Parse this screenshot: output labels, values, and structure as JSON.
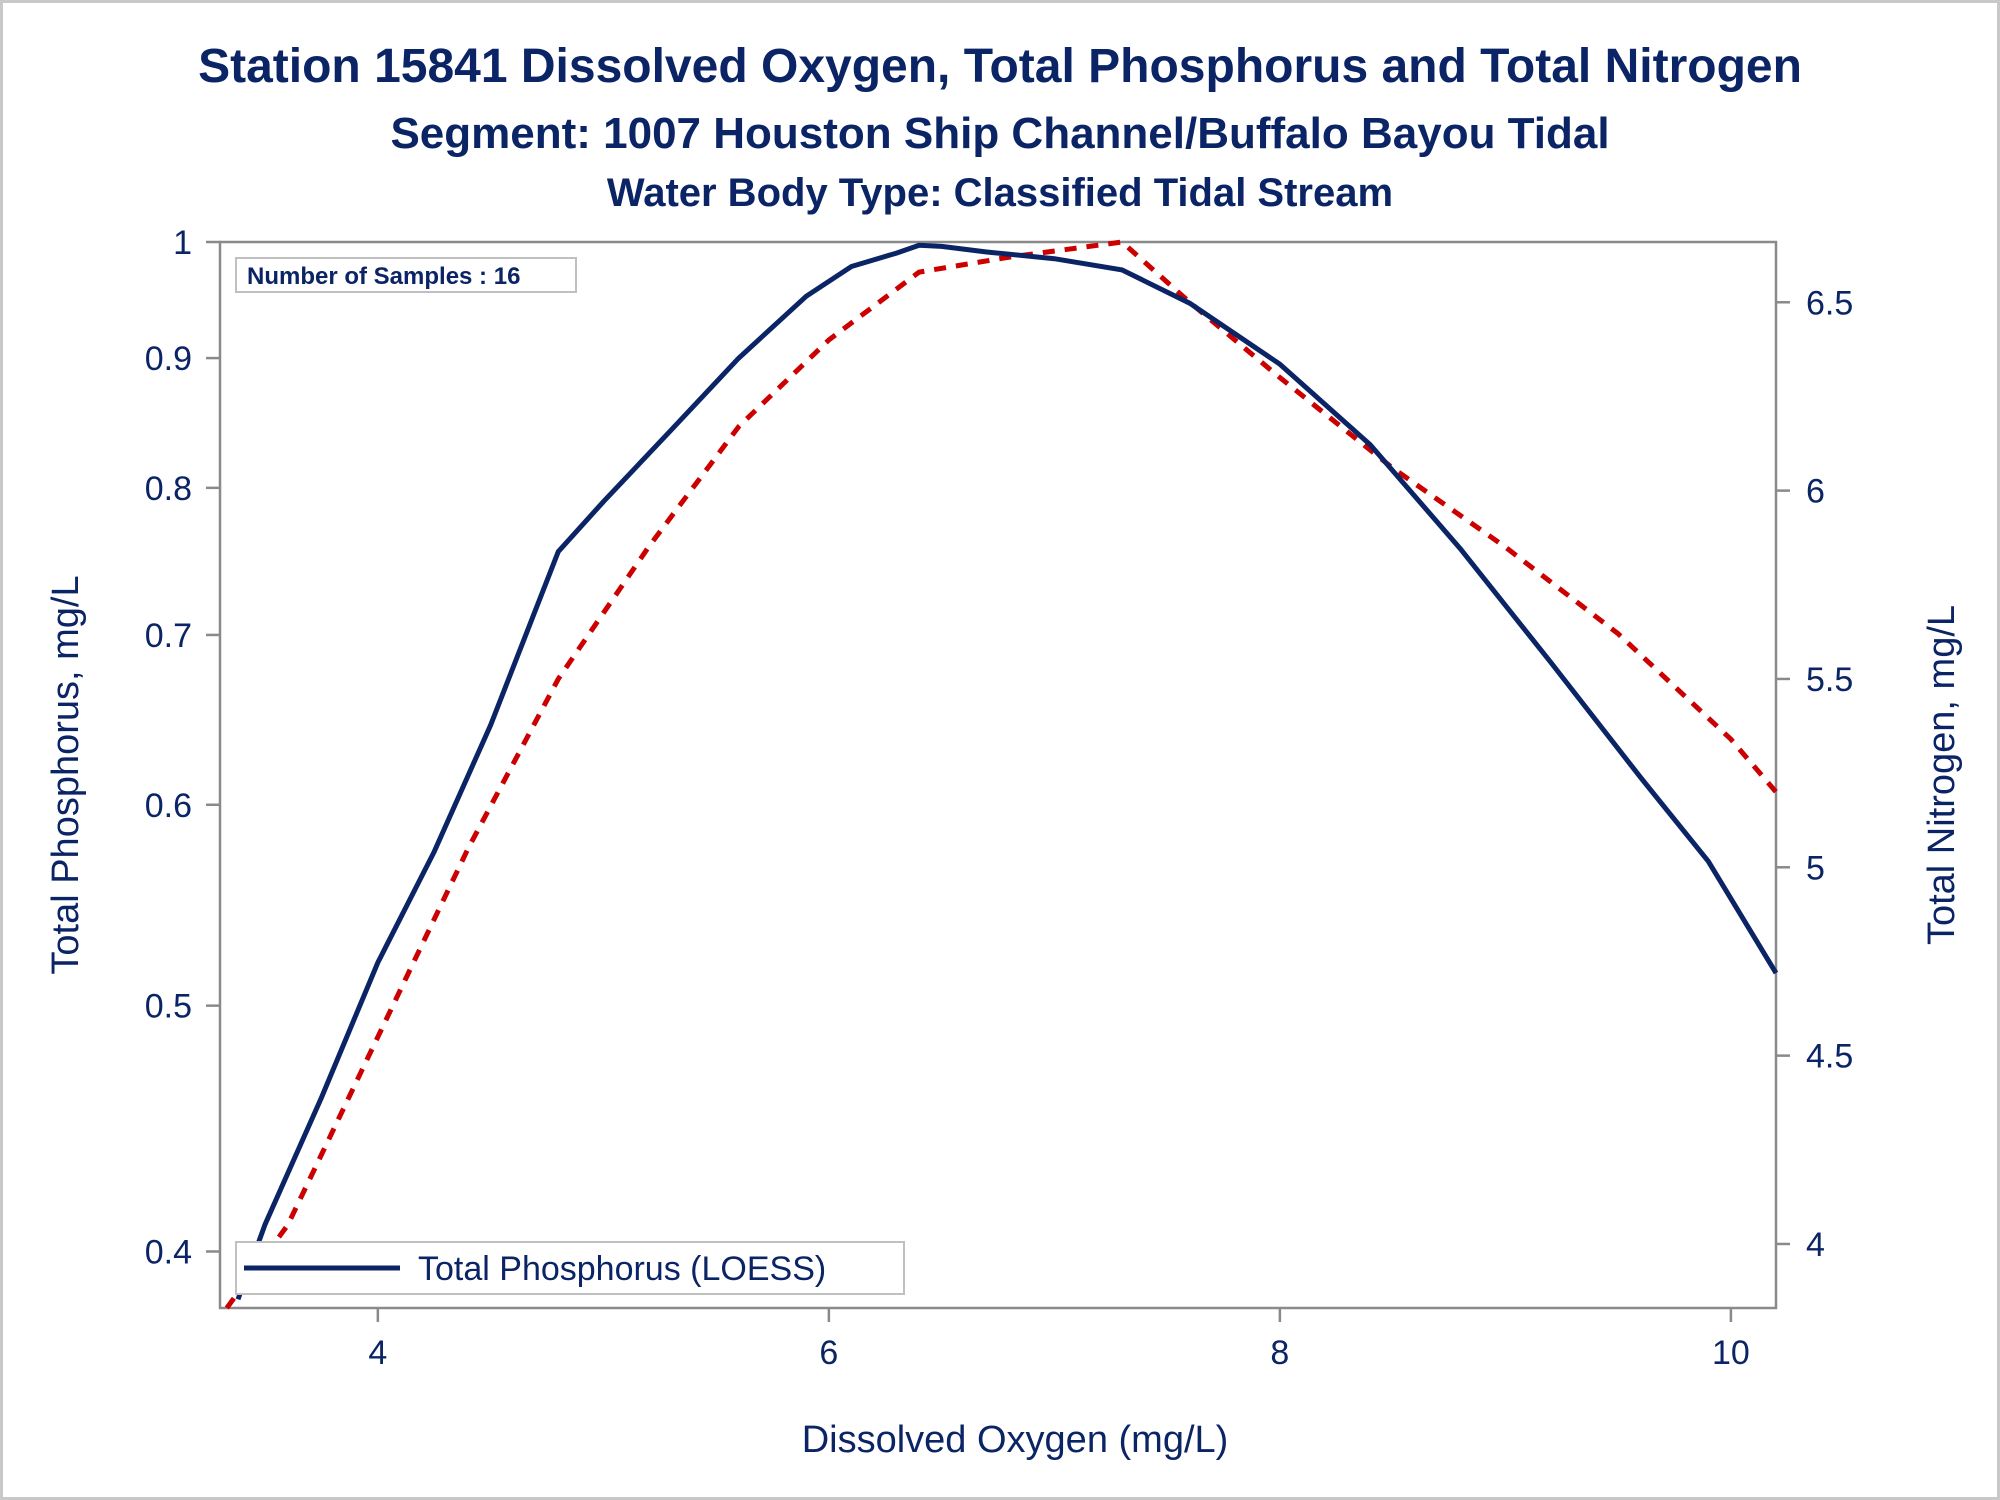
{
  "chart_data": {
    "type": "line",
    "title": "Station 15841  Dissolved Oxygen, Total Phosphorus and Total Nitrogen",
    "subtitle": "Segment: 1007  Houston Ship Channel/Buffalo Bayou Tidal",
    "subtitle2": "Water Body Type: Classified Tidal Stream",
    "xlabel": "Dissolved Oxygen (mg/L)",
    "ylabel_left": "Total Phosphorus, mg/L",
    "ylabel_right": "Total Nitrogen, mg/L",
    "xlim": [
      3.3,
      10.2
    ],
    "ylim_left": [
      0.38,
      1.0
    ],
    "ylim_left_scale": "log",
    "ylim_right": [
      3.83,
      6.66
    ],
    "xticks": [
      4,
      6,
      8,
      10
    ],
    "yticks_left": [
      0.4,
      0.5,
      0.6,
      0.7,
      0.8,
      0.9,
      1
    ],
    "yticks_right": [
      4,
      4.5,
      5,
      5.5,
      6,
      6.5
    ],
    "inset_label": "Number of Samples : 16",
    "legend": {
      "placement": "bottom-left",
      "entries": [
        "Total Phosphorus (LOESS)"
      ]
    },
    "grid": false,
    "series": [
      {
        "name": "Total Phosphorus (LOESS)",
        "axis": "left",
        "color": "#0b2466",
        "style": "solid",
        "x": [
          3.38,
          3.5,
          3.75,
          4.0,
          4.25,
          4.5,
          4.8,
          5.0,
          5.3,
          5.6,
          5.9,
          6.1,
          6.3,
          6.4,
          6.5,
          6.7,
          7.0,
          7.3,
          7.6,
          8.0,
          8.4,
          8.8,
          9.2,
          9.6,
          9.9,
          10.2
        ],
        "y": [
          0.383,
          0.41,
          0.46,
          0.52,
          0.575,
          0.645,
          0.755,
          0.79,
          0.843,
          0.9,
          0.952,
          0.978,
          0.99,
          0.997,
          0.996,
          0.991,
          0.985,
          0.975,
          0.946,
          0.895,
          0.832,
          0.757,
          0.683,
          0.615,
          0.57,
          0.515
        ]
      },
      {
        "name": "",
        "axis": "right",
        "color": "#cc0000",
        "style": "dashed",
        "x": [
          3.33,
          3.6,
          4.0,
          4.4,
          4.8,
          5.2,
          5.6,
          6.0,
          6.4,
          6.8,
          7.3,
          7.6,
          8.0,
          8.5,
          9.0,
          9.5,
          10.0,
          10.2
        ],
        "y": [
          3.83,
          4.05,
          4.55,
          5.05,
          5.5,
          5.85,
          6.17,
          6.4,
          6.58,
          6.62,
          6.66,
          6.5,
          6.3,
          6.06,
          5.85,
          5.62,
          5.34,
          5.2
        ]
      }
    ]
  }
}
